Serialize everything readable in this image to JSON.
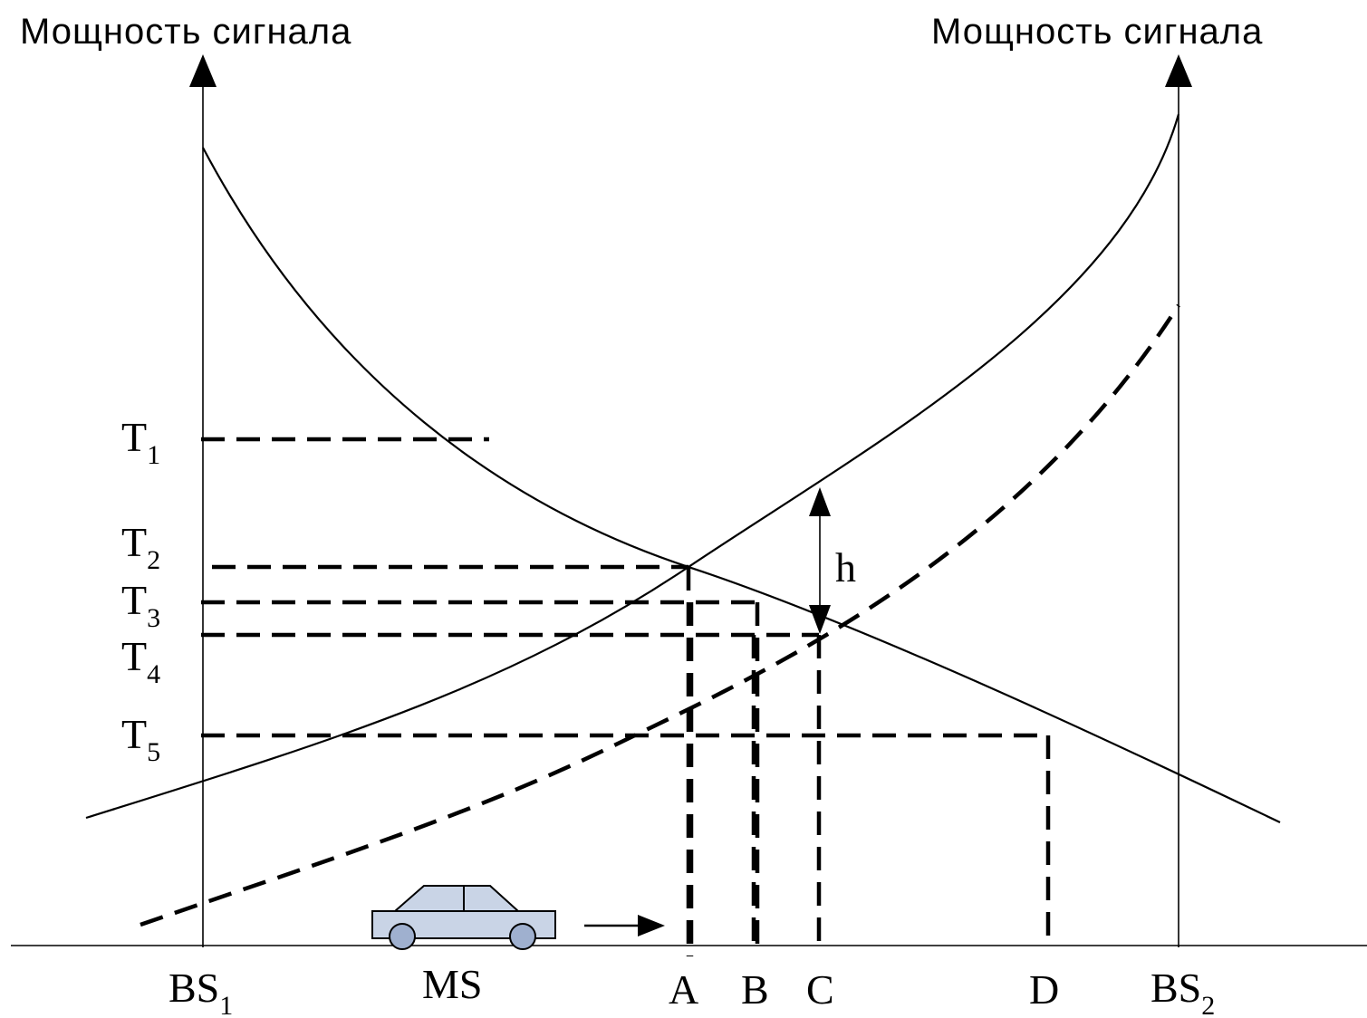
{
  "labels": {
    "y_axis_left": "Мощность сигнала",
    "y_axis_right": "Мощность сигнала",
    "bs1": {
      "main": "BS",
      "sub": "1"
    },
    "bs2": {
      "main": "BS",
      "sub": "2"
    },
    "ms": "MS",
    "points": {
      "a": "A",
      "b": "B",
      "c": "C",
      "d": "D"
    },
    "hysteresis": "h",
    "thresholds": [
      {
        "main": "T",
        "sub": "1"
      },
      {
        "main": "T",
        "sub": "2"
      },
      {
        "main": "T",
        "sub": "3"
      },
      {
        "main": "T",
        "sub": "4"
      },
      {
        "main": "T",
        "sub": "5"
      }
    ]
  },
  "colors": {
    "line": "#000000",
    "car_body": "#c9d4e6",
    "background": "#ffffff"
  },
  "icons": {
    "vehicle": "car-icon",
    "motion": "arrow-right-icon"
  }
}
